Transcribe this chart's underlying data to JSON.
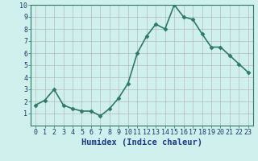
{
  "x": [
    0,
    1,
    2,
    3,
    4,
    5,
    6,
    7,
    8,
    9,
    10,
    11,
    12,
    13,
    14,
    15,
    16,
    17,
    18,
    19,
    20,
    21,
    22,
    23
  ],
  "y": [
    1.7,
    2.1,
    3.0,
    1.7,
    1.4,
    1.2,
    1.2,
    0.8,
    1.4,
    2.3,
    3.5,
    6.0,
    7.4,
    8.4,
    8.0,
    10.0,
    9.0,
    8.8,
    7.6,
    6.5,
    6.5,
    5.8,
    5.1,
    4.4
  ],
  "line_color": "#2d7a6a",
  "marker": "D",
  "marker_size": 2.5,
  "bg_color": "#cff0ec",
  "grid_color": "#b0b0b0",
  "xlabel": "Humidex (Indice chaleur)",
  "xlim": [
    -0.5,
    23.5
  ],
  "ylim": [
    0,
    10
  ],
  "xticks": [
    0,
    1,
    2,
    3,
    4,
    5,
    6,
    7,
    8,
    9,
    10,
    11,
    12,
    13,
    14,
    15,
    16,
    17,
    18,
    19,
    20,
    21,
    22,
    23
  ],
  "yticks": [
    1,
    2,
    3,
    4,
    5,
    6,
    7,
    8,
    9,
    10
  ],
  "xlabel_fontsize": 7.5,
  "tick_fontsize": 6.0,
  "line_width": 1.2,
  "spine_color": "#2d7a6a",
  "xlabel_color": "#1a3a8a"
}
